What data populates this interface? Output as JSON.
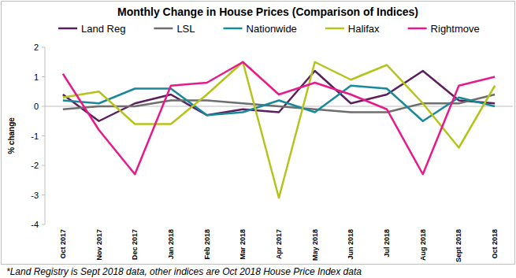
{
  "chart_data": {
    "type": "line",
    "title": "Monthly Change in House Prices (Comparison of Indices)",
    "y_label": "% change",
    "footnote": "*Land Registry is Sept 2018 data, other indices are Oct 2018 House Price Index data",
    "categories": [
      "Oct 2017",
      "Nov 2017",
      "Dec 2017",
      "Jan 2018",
      "Feb 2018",
      "Mar 2018",
      "Apr 2017",
      "May 2018",
      "Jun 2018",
      "Jul 2018",
      "Aug 2018",
      "Sept 2018",
      "Oct 2018"
    ],
    "series": [
      {
        "name": "Land Reg",
        "color": "#5b1f5e",
        "values": [
          0.4,
          -0.5,
          0.1,
          0.4,
          -0.3,
          -0.1,
          -0.2,
          1.2,
          0.1,
          0.4,
          1.2,
          0.2,
          0.1
        ]
      },
      {
        "name": "LSL",
        "color": "#6e6e6e",
        "values": [
          -0.1,
          0.0,
          0.0,
          0.2,
          0.2,
          0.1,
          0.0,
          -0.1,
          -0.2,
          -0.2,
          0.1,
          0.1,
          0.4
        ]
      },
      {
        "name": "Nationwide",
        "color": "#17899b",
        "values": [
          0.2,
          0.1,
          0.6,
          0.6,
          -0.3,
          -0.2,
          0.2,
          -0.2,
          0.7,
          0.6,
          -0.5,
          0.3,
          0.0
        ]
      },
      {
        "name": "Halifax",
        "color": "#b4c41a",
        "values": [
          0.3,
          0.5,
          -0.6,
          -0.6,
          0.4,
          1.5,
          -3.1,
          1.5,
          0.9,
          1.4,
          0.1,
          -1.4,
          0.7
        ]
      },
      {
        "name": "Rightmove",
        "color": "#e8198b",
        "values": [
          1.1,
          -0.8,
          -2.3,
          0.7,
          0.8,
          1.5,
          0.4,
          0.8,
          0.4,
          -0.1,
          -2.3,
          0.7,
          1.0
        ]
      }
    ],
    "ylim": [
      -4,
      2
    ],
    "yticks": [
      -4,
      -3,
      -2,
      -1,
      0,
      1,
      2
    ],
    "grid": false,
    "legend": "top"
  }
}
